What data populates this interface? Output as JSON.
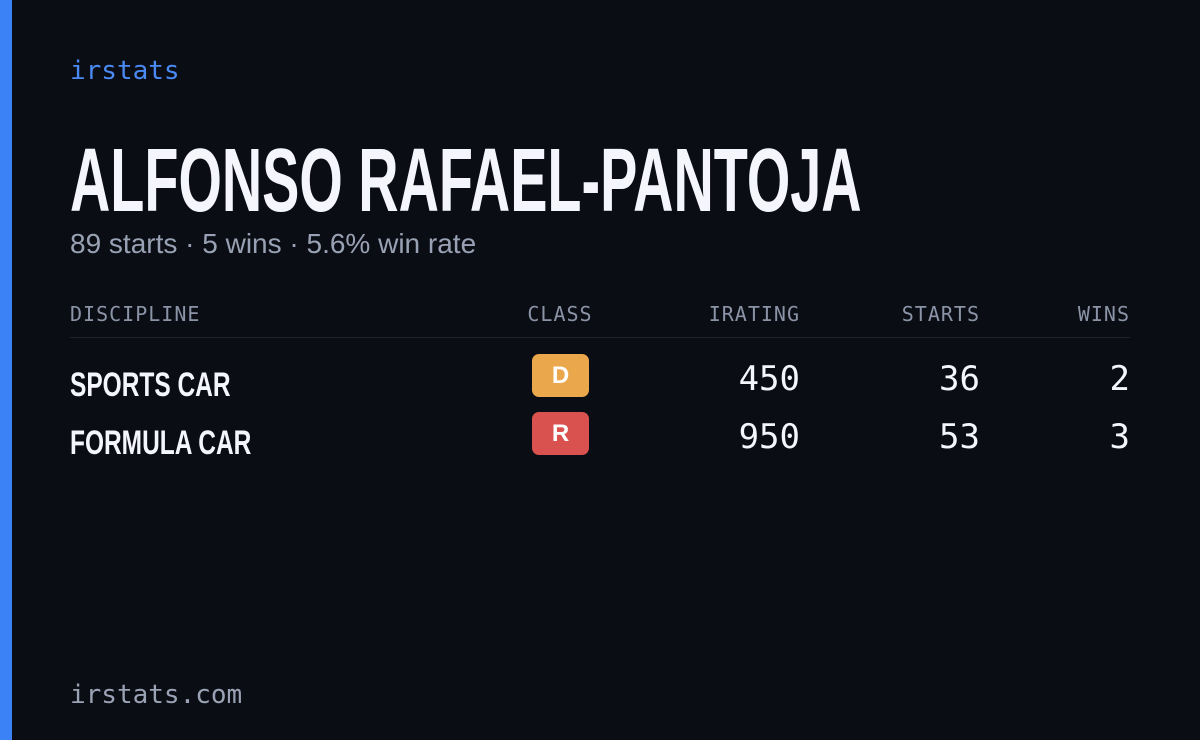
{
  "brand": "irstats",
  "driver": {
    "name": "ALFONSO RAFAEL-PANTOJA",
    "summary": "89 starts · 5 wins · 5.6% win rate"
  },
  "table": {
    "headers": [
      "DISCIPLINE",
      "CLASS",
      "IRATING",
      "STARTS",
      "WINS"
    ],
    "rows": [
      {
        "discipline": "SPORTS CAR",
        "class": "D",
        "class_color": "#eaa74b",
        "irating": 450,
        "starts": 36,
        "wins": 2
      },
      {
        "discipline": "FORMULA CAR",
        "class": "R",
        "class_color": "#d9524f",
        "irating": 950,
        "starts": 53,
        "wins": 3
      }
    ]
  },
  "footer": "irstats.com"
}
